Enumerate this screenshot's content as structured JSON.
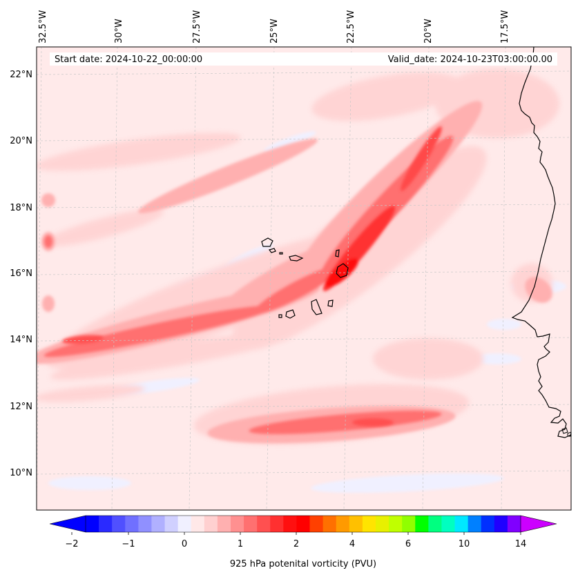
{
  "header": {
    "start_date": "Start date: 2024-10-22_00:00:00",
    "valid_date": "Valid_date: 2024-10-23T03:00:00.00"
  },
  "map": {
    "region": "Cape Verde / West African coast",
    "lon_labels": [
      "32.5°W",
      "30°W",
      "27.5°W",
      "25°W",
      "22.5°W",
      "20°W",
      "17.5°W"
    ],
    "lat_labels": [
      "22°N",
      "20°N",
      "18°N",
      "16°N",
      "14°N",
      "12°N",
      "10°N"
    ],
    "gridlines": true,
    "gridline_style": "dashed-light-gray"
  },
  "colorbar": {
    "label": "925 hPa potenital vorticity (PVU)",
    "ticks": [
      "−2",
      "−1",
      "0",
      "1",
      "2",
      "4",
      "6",
      "10",
      "14"
    ],
    "extend": "both",
    "colors": [
      "#0000ff",
      "#2a2aff",
      "#5050ff",
      "#7070ff",
      "#9090ff",
      "#b0b0ff",
      "#d0d0ff",
      "#f0f0ff",
      "#ffe8e8",
      "#ffd0d0",
      "#ffb0b0",
      "#ff9090",
      "#ff7070",
      "#ff5050",
      "#ff3030",
      "#ff1010",
      "#ff0000",
      "#ff4000",
      "#ff7000",
      "#ff9a00",
      "#ffc000",
      "#ffe400",
      "#e8f000",
      "#c0ff00",
      "#90ff00",
      "#00ff00",
      "#00ff80",
      "#00ffc0",
      "#00e8ff",
      "#0080ff",
      "#0030ff",
      "#2000ff",
      "#8000ff"
    ],
    "under_color": "#0000ff",
    "over_color": "#cc00ff"
  }
}
